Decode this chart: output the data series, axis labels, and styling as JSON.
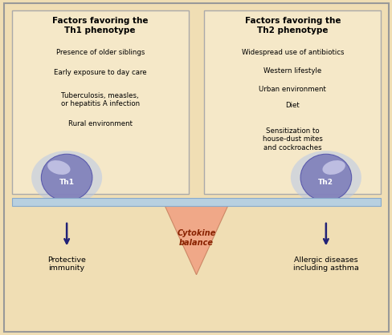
{
  "background_color": "#f0deb4",
  "outer_border_color": "#999999",
  "box_fill_color": "#f5e8c8",
  "box_border_color": "#aaaaaa",
  "bar_color": "#b8d0e0",
  "bar_border_color": "#88aacc",
  "triangle_fill": "#f0a888",
  "triangle_edge": "#cc8866",
  "arrow_color": "#222277",
  "title_th1": "Factors favoring the\nTh1 phenotype",
  "title_th2": "Factors favoring the\nTh2 phenotype",
  "th1_items": [
    "Presence of older siblings",
    "Early exposure to day care",
    "Tuberculosis, measles,\nor hepatitis A infection",
    "Rural environment"
  ],
  "th2_items": [
    "Widespread use of antibiotics",
    "Western lifestyle",
    "Urban environment",
    "Diet",
    "Sensitization to\nhouse-dust mites\nand cockroaches"
  ],
  "th1_label": "Th1",
  "th2_label": "Th2",
  "cytokine_label": "Cytokine\nbalance",
  "left_bottom_label": "Protective\nimmunity",
  "right_bottom_label": "Allergic diseases\nincluding asthma",
  "cell_glow": "#b8c8e8",
  "cell_outer": "#8080bb",
  "cell_inner_hi": "#d0d0ee",
  "cell_border": "#5555aa"
}
